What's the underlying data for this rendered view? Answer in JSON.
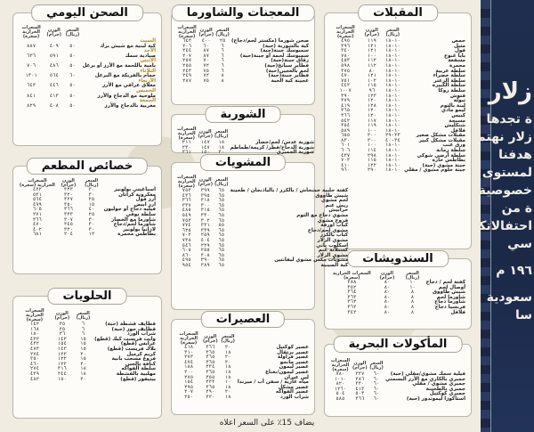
{
  "colors": {
    "banner": "#1f2e4e",
    "accent": "#b48a2c",
    "box_border": "#b9b5a8"
  },
  "banner": {
    "lines": [
      "زلار",
      "ة تجدها",
      "زلار نهتم",
      "هدفنا",
      "لمستوى الذي",
      "خصوصية",
      "ة من",
      "احتفالاتكم",
      "سي",
      "١٩٦ م",
      "سعودية",
      "سا"
    ]
  },
  "sections": {
    "appetizers": {
      "title": "المقبلات",
      "headers": [
        "السعر (ريال)",
        "الوزن (جرام)",
        "السعرات الحرارية (سعرة)"
      ],
      "rows": [
        [
          "حمص",
          "١٠-١٨",
          "١١٩",
          "٤٩٥"
        ],
        [
          "متبل",
          "١٠-١٨",
          "١٢١",
          "٣٩٦"
        ],
        [
          "فول",
          "١٠-١٨",
          "١٢١",
          "٣٤٠"
        ],
        [
          "بابا غنوج",
          "١٠-١٨",
          "١٠٠",
          "٧٨٠"
        ],
        [
          "مسقعة",
          "١٠-١٨",
          "١١٢",
          "٤٥٣"
        ],
        [
          "محمرة",
          "١٠-١٨",
          "١١٢",
          "٥٩٨"
        ],
        [
          "سلطة عربية",
          "١٠-١٨",
          "٨٠",
          "٣٧٥"
        ],
        [
          "سلطة خضراء",
          "١٠-١٨",
          "١٢١",
          "٤٧٠"
        ],
        [
          "سلطة الزعتر",
          "١٠-١٨",
          "١٠٢",
          "٧٥١"
        ],
        [
          "سلطة الكبيرة",
          "١٠-١٨",
          "١١٥",
          "٤٤٢"
        ],
        [
          "سلطة روكا",
          "١٠-١٨",
          "٩٦",
          "١٠٠٧"
        ],
        [
          "فتوش",
          "١٠-١٨",
          "١٢٣",
          "٣٩٠"
        ],
        [
          "تبولة",
          "١٠-١٨",
          "١٢٠",
          "٣٧٩"
        ],
        [
          "لبنة بالثوم",
          "١٠-١٨",
          "١٢٨",
          "٤١٩"
        ],
        [
          "ليمو مادي",
          "١٠-١٨",
          "١٢٠",
          "٣٦٥"
        ],
        [
          "كبيس",
          "١٠-١٨",
          "١٢٠",
          "٣٦٦"
        ],
        [
          "مسبحة",
          "١٠-١٨",
          "١١٧",
          "٥٤٢"
        ],
        [
          "شنكليش",
          "١٠-١٨",
          "١١٩",
          "٣٥٤"
        ],
        [
          "فلافل",
          "١٠-١٨",
          "١٠٠",
          "٥٨٩"
        ],
        [
          "مقبلات مشكل صغير",
          "٢٣-٢٩",
          "٢٠٠",
          "٦٥٥"
        ],
        [
          "مقبلات مشكل كبير",
          "٣٤-٤٠",
          "٣٠٠",
          "٨٣٠"
        ],
        [
          "ورق عنب",
          "١٠-١٨",
          "١٠٠",
          "٦٠١"
        ],
        [
          "سلطة رمانة",
          "١٠-١٨",
          "١١٤",
          "٦٠٦"
        ],
        [
          "سلطة أرضي شوكي",
          "١٠-١٨",
          "٢٩٨",
          "٤٣٧"
        ],
        [
          "بطاطس حارة",
          "١٠-١٨",
          "١١٥",
          "٧٠٣"
        ],
        [
          "جبنة مشوي (حبة)",
          "١٠-١٨",
          "١٢٢",
          "٤١٠"
        ],
        [
          "جبنة حلوم مشوي / مقلي",
          "١٠-١٨",
          "٢٩٠",
          "٩٦٠"
        ]
      ]
    },
    "sandwiches": {
      "title": "السندويشات",
      "headers": [
        "السعر (ريال)",
        "الوزن (جرام)",
        "السعرات الحرارية (سعرة)"
      ],
      "rows": [
        [
          "كفتة لحم / دجاج",
          "١٠",
          "٨٠",
          "٣٨٨"
        ],
        [
          "أوصال لحم",
          "١٠",
          "٨٠",
          "٣٥٢"
        ],
        [
          "شيش طاووق",
          "٨",
          "٨٠",
          "٣٦٤"
        ],
        [
          "شاورما لحم",
          "٨",
          "٨٠",
          "٢٦٣"
        ],
        [
          "شاورما دجاج",
          "٨",
          "٨٠",
          "٣٦٢"
        ],
        [
          "فرنسيا دجاج",
          "٨",
          "٨٠",
          "٣٦٢"
        ],
        [
          "فلافل",
          "٨",
          "٨٠",
          "٣٤٢"
        ]
      ]
    },
    "seafood": {
      "title": "المأكولات البحرية",
      "headers": [
        "السعر (ريال)",
        "الوزن (جرام)",
        "السعرات الحرارية (سعرة)"
      ],
      "rows": [
        [
          "فيلية سمك مشوي/مقلي (حبة)",
          "٦٠",
          "٣٣٧",
          "٧٨٠"
        ],
        [
          "جمبري بالكاري مع الأرز البسمتي",
          "٦٠",
          "٣٨٦",
          "١٠١٠"
        ],
        [
          "جمبري مشوي / مقلي",
          "٦٠",
          "٣٣٠",
          "٨٢٠"
        ],
        [
          "جمبري بالطحينة",
          "٦٠",
          "٤١٣",
          "١٢٦٠"
        ],
        [
          "جمبري كوكتيل",
          "٦٠",
          "٥٠٣",
          "٥٠٤"
        ],
        [
          "استاكوزا ليموندور (حبة)",
          "٦٠",
          "٣٦٦",
          "٥٨٥"
        ]
      ]
    },
    "pastries": {
      "title": "المعجنات والشاورما",
      "headers": [
        "السعر (ريال)",
        "الوزن (جرام)",
        "السعرات الحرارية (سعرة)"
      ],
      "rows": [
        [
          "صحن شورما (مكستر لحم/دجاج)",
          "٢٥",
          "٤٠٠",
          "٦٤٣"
        ],
        [
          "كبة بالشوربة (حبة)",
          "٦",
          "٦٠",
          "٢٠٦"
        ],
        [
          "سمبوسك جبنة(حبة)",
          "٦",
          "٨٧",
          "٢٤٤"
        ],
        [
          "سمبوسك لحمة أو جبنة(حبة)",
          "٦",
          "٨٧",
          "٢٠٧"
        ],
        [
          "رقاق جبنة(حبة)",
          "٦",
          "٧٠",
          "٢٥٧"
        ],
        [
          "فطاير سبانخ(حبة)",
          "٦",
          "٧٢",
          "٢٥٥"
        ],
        [
          "لحم بالعجين(حبة)",
          "٦",
          "٧٥",
          "٢٤٣"
        ],
        [
          "فطاير جبنة(حبة)",
          "٨",
          "٧٢",
          "٢٤٩"
        ],
        [
          "عجينة كبة الحبة",
          "٨",
          "٧٥",
          "٢٨٧"
        ]
      ]
    },
    "soups": {
      "title": "الشوربة",
      "headers": [
        "السعر (ريال)",
        "الوزن (جرام)",
        "السعرات الحرارية (سعرة)"
      ],
      "rows": [
        [
          "شوربة عدس/ لحم/خضار",
          "١٨",
          "١٤٧",
          "٢١١"
        ],
        [
          "شوربة الدجاج/فطر/ كريمة/طماطم",
          "١٨",
          "١٤٧",
          "٢٣٠"
        ],
        [
          "شوربة الجمبري",
          "٢٠",
          "١٥٠",
          "٢٦١"
        ]
      ]
    },
    "grills": {
      "title": "المشويات",
      "headers": [
        "السعر (ريال)",
        "الوزن (جرام)",
        "السعرات الحرارية (سعرة)"
      ],
      "rows": [
        [
          "كفتة حلبية خشخاش / بالكرز / بالباذنجان / طحينة",
          "٦٥",
          "٣٩٩",
          "٧٥٣"
        ],
        [
          "شيش طاووق",
          "٦٥",
          "٣٩٥",
          "٤٣٦"
        ],
        [
          "لحم مشوي",
          "٦٥",
          "٣١٨",
          "٣٦٦"
        ],
        [
          "ريش غنم",
          "٦٥",
          "٣٠٠",
          "٣٣٧"
        ],
        [
          "خرابيش",
          "٦٥",
          "٣١٥",
          "٤٨٥"
        ],
        [
          "مشوي دجاج مع الثوم",
          "٦٥",
          "٣٣٠",
          "٥٤٩"
        ],
        [
          "فروج مشوي",
          "٦٥",
          "٣٠٢",
          "٧٥٣"
        ],
        [
          "كباب اورفة",
          "٥٥",
          "٣٢١",
          "٧٧٤"
        ],
        [
          "مشوي لحم/دجاج",
          "٦٥",
          "٣٣٩",
          "٦٢٥"
        ],
        [
          "كباب بالكرز",
          "٦٥",
          "٢٥٩",
          "٧٠٢"
        ],
        [
          "مشوي الزلار",
          "٦٥",
          "٤٠٤",
          "٧٣٨"
        ],
        [
          "اسكلوب باني",
          "٦٥",
          "٢٢٩",
          "٥٤٦"
        ],
        [
          "كستلاتة غنم",
          "٦٥",
          "٢٥٥",
          "٦٠٥"
        ],
        [
          "مشوي الزلار",
          "٦٥",
          "٣٠٨",
          "٨٦٠"
        ],
        [
          "مشويات مكس مشوي ليفانتين",
          "٦٥",
          "٣٩٠",
          "٤٩٥"
        ],
        [
          "كبة الصينية",
          "٦٥",
          "٣٨٩",
          "٩٥٤"
        ]
      ]
    },
    "juices": {
      "title": "العصيرات",
      "headers": [
        "السعر (ريال)",
        "الوزن (جرام)",
        "السعرات الحرارية (سعرة)"
      ],
      "rows": [
        [
          "عصير كوكتيل",
          "٢٠",
          "٣٦٦",
          "٤١٨"
        ],
        [
          "عصير برتقال",
          "١٨",
          "٣٦٥",
          "٣١٠"
        ],
        [
          "عصير فراولة",
          "٢٠",
          "٣٦٥",
          "٢٧٣"
        ],
        [
          "عصير مانجو",
          "٢٠",
          "٣٦٥",
          "٤٧٤"
        ],
        [
          "عصير ليمون",
          "١٨",
          "٣٣٤",
          "١٨٨"
        ],
        [
          "عصير ليمون/نعناع",
          "١٨",
          "٣٦٥",
          "٢٠٠"
        ],
        [
          "لبن عيران",
          "١٨",
          "٣٥٥",
          "٢٧٥"
        ],
        [
          "مياه غازية / سفن أب / ميرندا",
          "١٠",
          "٣٣٣",
          "١٥٤"
        ],
        [
          "عصير مشكل",
          "١٨",
          "٣٦٥",
          "٢٩٥"
        ],
        [
          "عصير الفواكه",
          "٢٠",
          "٢٩٠",
          "٢٠٧"
        ],
        [
          "شراب الورد",
          "١٨",
          "٢٢٠",
          "٢٥٠"
        ]
      ]
    },
    "daily": {
      "title": "الصحن اليومي",
      "headers": [
        "السعر (ريال)",
        "الوزن (جرام)",
        "السعرات الحرارية (سعرة)"
      ],
      "rows": [
        [
          "السبت",
          "",
          "",
          ""
        ],
        [
          "كبة لبنية مع شيش برك",
          "٥٠",
          "٤٠٩",
          "٨٨٧"
        ],
        [
          "الأحد",
          "",
          "",
          ""
        ],
        [
          "صيادية سمك",
          "٥٠",
          "٥٩١",
          "٦٣٦"
        ],
        [
          "الاثنين",
          "",
          "",
          ""
        ],
        [
          "بامية باللحمة مع الأرز أو برغل",
          "٥٠",
          "٤٨٦",
          "٧٠٦"
        ],
        [
          "الثلاثاء",
          "",
          "",
          ""
        ],
        [
          "حمام بالفريكة مع البرغل",
          "٦٠",
          "٥٦٤",
          "١٣٠١"
        ],
        [
          "الأربعاء",
          "",
          "",
          ""
        ],
        [
          "معلاق عراقي مع الأرز",
          "٥٠",
          "٤٤٦",
          "٦٤٣"
        ],
        [
          "الخميس",
          "",
          "",
          ""
        ],
        [
          "ملوخية مع الدجاج والأرز",
          "٥٠",
          "٤١٣",
          "٨٤١"
        ],
        [
          "الجمعة",
          "",
          "",
          ""
        ],
        [
          "مغربية بالدجاج والأرز",
          "٥٠",
          "٤٠٨",
          "٨٢٩"
        ]
      ]
    },
    "specials": {
      "title": "خصائص المطعم",
      "headers": [
        "السعر (ريال)",
        "الوزن (جرام)",
        "السعرات الحرارية (سعرة)"
      ],
      "rows": [
        [
          "اسباغيتي بولونيز",
          "٣٠",
          "٣٢٣",
          "٤٢٢"
        ],
        [
          "معكرونة كراتان",
          "٣٠",
          "٣٢٠",
          "٥٣١"
        ],
        [
          "أرز فول",
          "٢٥",
          "٣٢٧",
          "٥٦٤"
        ],
        [
          "ارز ابيض",
          "١٥",
          "٣٥٠",
          "٤٩٩"
        ],
        [
          "فيليه دجاج أو جوليون",
          "٤٠",
          "٣٦٦",
          "٦٠٥"
        ],
        [
          "سلطة بوفي",
          "٢٥",
          "٣٣٣",
          "٢٧١"
        ],
        [
          "شاورما مع الخضار",
          "٣٠",
          "٣٠٧",
          "٣٦٦"
        ],
        [
          "شاورما لحم/دجاج",
          "٣٠",
          "٣٤٥",
          "٤٧٠"
        ],
        [
          "لازانيا بولونيز",
          "٣٠",
          "٣٢٠",
          "٤٠٢"
        ],
        [
          "بطاطس محمرة",
          "١٢",
          "٢٠٤",
          "٦٨١"
        ]
      ]
    },
    "desserts": {
      "title": "الحلويات",
      "headers": [
        "السعر (ريال)",
        "الوزن (جرام)",
        "السعرات الحرارية (سعرة)"
      ],
      "rows": [
        [
          "قطايف قشطة (حبة)",
          "٦",
          "٣٥",
          "١٤٢"
        ],
        [
          "قطايف جوز (حبة)",
          "٦",
          "٣٥",
          "١٦٨"
        ],
        [
          "شراب الورد",
          "٦",
          "٣٦",
          "١٨٠"
        ],
        [
          "وايت فريست كيك (قطع)",
          "١٥",
          "١٤٢",
          "٤٣٢"
        ],
        [
          "عرايس (قطع)",
          "١٥",
          "١٥٤",
          "٤٣٢"
        ],
        [
          "بلاك فريست (قطع)",
          "١٥",
          "١٤٣",
          "٤٧٣"
        ],
        [
          "كريم كرميل",
          "٢٠",
          "١٢٢",
          "٢٧٤"
        ],
        [
          "فروع مسحب بانية",
          "١٥",
          "١٢٢",
          "٣٥٠"
        ],
        [
          "كنافة بالجبن",
          "٢٠",
          "١٢٢",
          "٤٦٠"
        ],
        [
          "سلطة الفواكه",
          "١٨",
          "٣١٦",
          "٢٧٤"
        ],
        [
          "مهلبية بالقشطة",
          "١٨",
          "٢٤٤",
          "٤٣٩"
        ],
        [
          "بيتيفور (قطع)",
          "٢٠",
          "١٥٠",
          "٤٨٢"
        ]
      ]
    }
  },
  "footer": "يضاف 15٪ على السعر اعلاه"
}
